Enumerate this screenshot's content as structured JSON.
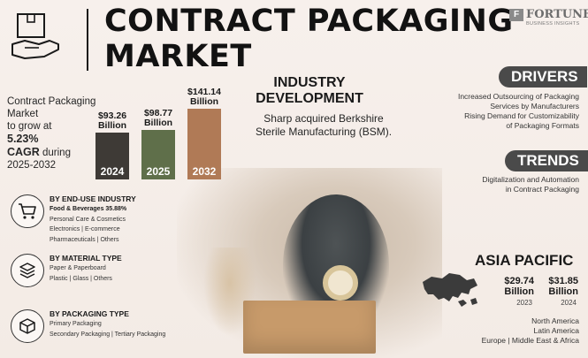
{
  "title": {
    "line1": "CONTRACT PACKAGING",
    "line2": "MARKET"
  },
  "logo": {
    "mark": "F",
    "name": "FORTUNE",
    "sub": "BUSINESS INSIGHTS"
  },
  "growth": {
    "line1": "Contract Packaging",
    "line2": "Market",
    "line3": "to grow at",
    "cagr": "5.23%",
    "line5_bold": "CAGR",
    "line5_rest": " during",
    "period": "2025-2032"
  },
  "chart_data": {
    "type": "bar",
    "categories": [
      "2024",
      "2025",
      "2032"
    ],
    "values": [
      93.26,
      98.77,
      141.14
    ],
    "value_labels": [
      "$93.26\nBillion",
      "$98.77\nBillion",
      "$141.14\nBillion"
    ],
    "label_line1": [
      "$93.26",
      "$98.77",
      "$141.14"
    ],
    "label_line2": [
      "Billion",
      "Billion",
      "Billion"
    ],
    "colors": [
      "#3e3a36",
      "#5f6f4a",
      "#b07a56"
    ]
  },
  "industry": {
    "title1": "INDUSTRY",
    "title2": "DEVELOPMENT",
    "text1": "Sharp acquired Berkshire",
    "text2": "Sterile Manufacturing (BSM)."
  },
  "drivers": {
    "label": "DRIVERS",
    "items": [
      "Increased Outsourcing of Packaging",
      "Services by Manufacturers",
      "Rising Demand for Customizability",
      "of Packaging Formats"
    ]
  },
  "trends": {
    "label": "TRENDS",
    "items": [
      "Digitalization and Automation",
      "in Contract Packaging"
    ]
  },
  "asia": {
    "title": "ASIA PACIFIC",
    "v1": "$29.74",
    "v1b": "Billion",
    "y1": "2023",
    "v2": "$31.85",
    "v2b": "Billion",
    "y2": "2024",
    "regions": [
      "North America",
      "Latin America",
      "Europe  |  Middle East & Africa"
    ]
  },
  "segments": {
    "end_use": {
      "title": "BY END-USE INDUSTRY",
      "lead": "Food & Beverages 35.88%",
      "lines": [
        "Personal Care & Cosmetics",
        "Electronics  |  E-commerce",
        "Pharmaceuticals  |  Others"
      ]
    },
    "material": {
      "title": "BY MATERIAL TYPE",
      "lines": [
        "Paper & Paperboard",
        "Plastic  |  Glass  |  Others"
      ]
    },
    "packaging": {
      "title": "BY PACKAGING TYPE",
      "lines": [
        "Primary Packaging",
        "Secondary Packaging  |  Tertiary Packaging"
      ]
    }
  }
}
